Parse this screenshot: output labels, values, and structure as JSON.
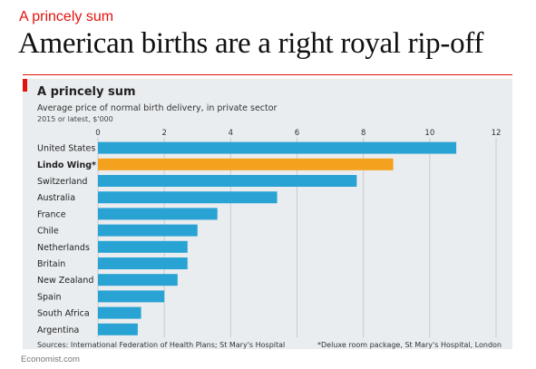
{
  "page": {
    "kicker": "A princely sum",
    "headline": "American births are a right royal rip-off",
    "credit": "Economist.com"
  },
  "colors": {
    "kicker": "#e3120b",
    "accent_block": "#e3120b",
    "panel_background": "#e9edf0",
    "bar": "#29a3d3",
    "highlight_bar": "#f4a11d",
    "grid": "#c6ccd1"
  },
  "chart_data": {
    "type": "bar",
    "orientation": "horizontal",
    "title": "A princely sum",
    "subtitle": "Average price of normal birth delivery, in private sector",
    "unit_note": "2015 or latest, $'000",
    "categories": [
      "United States",
      "Lindo Wing*",
      "Switzerland",
      "Australia",
      "France",
      "Chile",
      "Netherlands",
      "Britain",
      "New Zealand",
      "Spain",
      "South Africa",
      "Argentina"
    ],
    "values": [
      10.8,
      8.9,
      7.8,
      5.4,
      3.6,
      3.0,
      2.7,
      2.7,
      2.4,
      2.0,
      1.3,
      1.2
    ],
    "highlight": "Lindo Wing*",
    "xlim": [
      0,
      12
    ],
    "xticks": [
      "0",
      "2",
      "4",
      "6",
      "8",
      "10",
      "12"
    ],
    "grid": true,
    "axis_position": "top",
    "source": "Sources: International Federation of Health Plans; St Mary's Hospital",
    "footnote": "*Deluxe room package, St Mary's Hospital, London"
  }
}
